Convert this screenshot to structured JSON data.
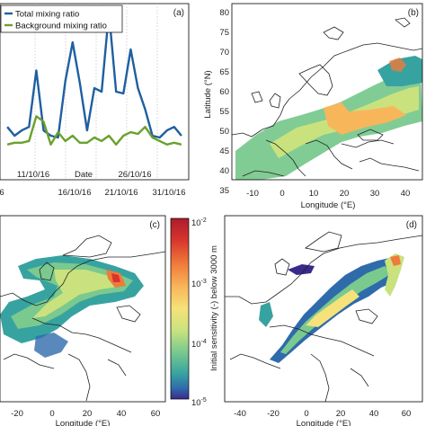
{
  "chart_data": [
    {
      "type": "line",
      "panel_label": "(a)",
      "xlabel": "Date",
      "x_tick_labels": [
        "6",
        "11/10/16",
        "16/10/16",
        "21/10/16",
        "26/10/16",
        "31/10/16"
      ],
      "grid": true,
      "legend_position": "top-left",
      "series": [
        {
          "name": "Total mixing ratio",
          "color": "#1f5fa0",
          "points": [
            [
              2,
              0.3
            ],
            [
              3,
              0.25
            ],
            [
              4,
              0.28
            ],
            [
              5,
              0.3
            ],
            [
              6,
              0.62
            ],
            [
              7,
              0.28
            ],
            [
              8,
              0.25
            ],
            [
              9,
              0.24
            ],
            [
              10,
              0.56
            ],
            [
              11,
              0.78
            ],
            [
              12,
              0.55
            ],
            [
              13,
              0.28
            ],
            [
              14,
              0.52
            ],
            [
              15,
              0.5
            ],
            [
              16,
              0.95
            ],
            [
              17,
              0.5
            ],
            [
              18,
              0.49
            ],
            [
              19,
              0.74
            ],
            [
              20,
              0.52
            ],
            [
              21,
              0.4
            ],
            [
              22,
              0.25
            ],
            [
              23,
              0.24
            ],
            [
              24,
              0.28
            ],
            [
              25,
              0.3
            ],
            [
              26,
              0.25
            ]
          ]
        },
        {
          "name": "Background mixing ratio",
          "color": "#6aa12c",
          "points": [
            [
              2,
              0.2
            ],
            [
              3,
              0.21
            ],
            [
              4,
              0.21
            ],
            [
              5,
              0.22
            ],
            [
              6,
              0.36
            ],
            [
              7,
              0.33
            ],
            [
              8,
              0.2
            ],
            [
              9,
              0.27
            ],
            [
              10,
              0.22
            ],
            [
              11,
              0.25
            ],
            [
              12,
              0.21
            ],
            [
              13,
              0.21
            ],
            [
              14,
              0.24
            ],
            [
              15,
              0.22
            ],
            [
              16,
              0.25
            ],
            [
              17,
              0.2
            ],
            [
              18,
              0.25
            ],
            [
              19,
              0.27
            ],
            [
              20,
              0.26
            ],
            [
              21,
              0.3
            ],
            [
              22,
              0.24
            ],
            [
              23,
              0.22
            ],
            [
              24,
              0.2
            ],
            [
              25,
              0.21
            ],
            [
              26,
              0.2
            ]
          ]
        }
      ]
    },
    {
      "type": "map",
      "panel_label": "(b)",
      "xlabel": "Longitude (°E)",
      "ylabel": "Latitude (°N)",
      "x_ticks": [
        -10,
        0,
        10,
        20,
        30,
        40
      ],
      "y_ticks": [
        35,
        40,
        45,
        50,
        55,
        60,
        65,
        70,
        75,
        80
      ]
    },
    {
      "type": "map",
      "panel_label": "(c)",
      "xlabel": "Longitude (°E)",
      "x_ticks": [
        -20,
        0,
        20,
        40,
        60
      ]
    },
    {
      "type": "map",
      "panel_label": "(d)",
      "xlabel": "Longitude (°E)",
      "x_ticks": [
        -40,
        -20,
        0,
        20,
        40,
        60
      ]
    },
    {
      "type": "colorbar",
      "label": "Initial sensitivity (-) below 3000 m",
      "scale": "log",
      "tick_labels": [
        {
          "base": "10",
          "exp": "-2"
        },
        {
          "base": "10",
          "exp": "-3"
        },
        {
          "base": "10",
          "exp": "-4"
        },
        {
          "base": "10",
          "exp": "-5"
        }
      ],
      "colors": [
        "#ac1c2b",
        "#e8522c",
        "#f8a44f",
        "#f5e27a",
        "#c9e27e",
        "#7ac98e",
        "#37a3a0",
        "#2f6bab",
        "#3a2a8c"
      ]
    }
  ]
}
